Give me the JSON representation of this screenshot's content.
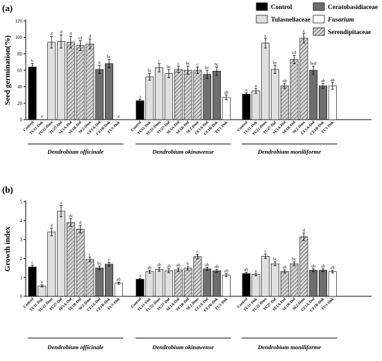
{
  "figure": {
    "legend": [
      {
        "label": "Control",
        "fill": "#000000",
        "hatch": false,
        "italic": false
      },
      {
        "label": "Tulasnellaceae",
        "fill": "#e0e0e0",
        "hatch": false,
        "italic": false
      },
      {
        "label": "Ceratobasidiaceae",
        "fill": "#6e6e6e",
        "hatch": false,
        "italic": false
      },
      {
        "label": "Fusarium",
        "fill": "#ffffff",
        "hatch": false,
        "italic": true
      },
      {
        "label": "Serendipitaceae",
        "fill": "#ffffff",
        "hatch": true,
        "italic": false
      }
    ],
    "colors": {
      "control": "#000000",
      "tulasnellaceae": "#e0e0e0",
      "ceratobasidiaceae": "#6e6e6e",
      "fusarium": "#ffffff",
      "serendipitaceae_hatch": "#5a5a5a",
      "axis": "#000000"
    }
  },
  "chart_data": [
    {
      "type": "bar",
      "panel_label": "(a)",
      "ylabel": "Seed  germination(%)",
      "ylim": [
        0,
        120
      ],
      "yticks": [
        0,
        20,
        40,
        60,
        80,
        100,
        120
      ],
      "groups": [
        {
          "name": "Dendrobium officinale",
          "bars": [
            {
              "label": "Control",
              "family": "control",
              "value": 64,
              "err": 4,
              "letter": "b"
            },
            {
              "label": "TU11-Dok",
              "family": "tulasnellaceae",
              "value": 0,
              "err": 0,
              "letter": "a"
            },
            {
              "label": "TU22-Dmo",
              "family": "tulasnellaceae",
              "value": 94,
              "err": 7,
              "letter": "d"
            },
            {
              "label": "TU27-Dof",
              "family": "tulasnellaceae",
              "value": 95,
              "err": 8,
              "letter": "d"
            },
            {
              "label": "SE1A-Dof",
              "family": "serendipitaceae",
              "value": 94,
              "err": 7,
              "letter": "d"
            },
            {
              "label": "SE1B-Dof",
              "family": "serendipitaceae",
              "value": 90,
              "err": 6,
              "letter": "cd"
            },
            {
              "label": "SE2-Dmo",
              "family": "serendipitaceae",
              "value": 92,
              "err": 6,
              "letter": "d"
            },
            {
              "label": "CE1A-Dof",
              "family": "ceratobasidiaceae",
              "value": 61,
              "err": 5,
              "letter": "b"
            },
            {
              "label": "CE1B-Dok",
              "family": "ceratobasidiaceae",
              "value": 68,
              "err": 5,
              "letter": "bc"
            },
            {
              "label": "FU1-Dok",
              "family": "fusarium",
              "value": 0,
              "err": 0,
              "letter": "a"
            }
          ]
        },
        {
          "name": "Dendrobium okinawense",
          "bars": [
            {
              "label": "Control",
              "family": "control",
              "value": 23,
              "err": 2,
              "letter": "a"
            },
            {
              "label": "TU11-Dok",
              "family": "tulasnellaceae",
              "value": 52,
              "err": 4,
              "letter": "bc"
            },
            {
              "label": "TU22-Dmo",
              "family": "tulasnellaceae",
              "value": 63,
              "err": 5,
              "letter": "c"
            },
            {
              "label": "TU27-Dof",
              "family": "tulasnellaceae",
              "value": 56,
              "err": 5,
              "letter": "bc"
            },
            {
              "label": "SE1A-Dof",
              "family": "serendipitaceae",
              "value": 61,
              "err": 4,
              "letter": "c"
            },
            {
              "label": "SE1B-Dof",
              "family": "serendipitaceae",
              "value": 60,
              "err": 5,
              "letter": "bc"
            },
            {
              "label": "SE2-Dmo",
              "family": "serendipitaceae",
              "value": 60,
              "err": 4,
              "letter": "c"
            },
            {
              "label": "CE1A-Dof",
              "family": "ceratobasidiaceae",
              "value": 55,
              "err": 5,
              "letter": "bc"
            },
            {
              "label": "CE1B-Dok",
              "family": "ceratobasidiaceae",
              "value": 59,
              "err": 5,
              "letter": "bc"
            },
            {
              "label": "FU1-Dok",
              "family": "fusarium",
              "value": 27,
              "err": 3,
              "letter": "ab"
            }
          ]
        },
        {
          "name": "Dendrobium moniliforme",
          "bars": [
            {
              "label": "Control",
              "family": "control",
              "value": 31,
              "err": 2,
              "letter": "a"
            },
            {
              "label": "TU11-Dok",
              "family": "tulasnellaceae",
              "value": 35,
              "err": 3,
              "letter": "a"
            },
            {
              "label": "TU22-Dmo",
              "family": "tulasnellaceae",
              "value": 93,
              "err": 6,
              "letter": "e"
            },
            {
              "label": "TU27-Dof",
              "family": "tulasnellaceae",
              "value": 61,
              "err": 5,
              "letter": "bc"
            },
            {
              "label": "SE1A-Dof",
              "family": "serendipitaceae",
              "value": 41,
              "err": 3,
              "letter": "ab"
            },
            {
              "label": "SE1B-Dof",
              "family": "serendipitaceae",
              "value": 73,
              "err": 5,
              "letter": "cd"
            },
            {
              "label": "SE2-Dmo",
              "family": "serendipitaceae",
              "value": 99,
              "err": 6,
              "letter": "e"
            },
            {
              "label": "CE1A-Dof",
              "family": "ceratobasidiaceae",
              "value": 60,
              "err": 5,
              "letter": "bcd"
            },
            {
              "label": "CE1B-Dok",
              "family": "ceratobasidiaceae",
              "value": 41,
              "err": 3,
              "letter": "ab"
            },
            {
              "label": "FU1-Dok",
              "family": "fusarium",
              "value": 41,
              "err": 4,
              "letter": "ab"
            }
          ]
        }
      ]
    },
    {
      "type": "bar",
      "panel_label": "(b)",
      "ylabel": "Growth index",
      "ylim": [
        0,
        5
      ],
      "yticks": [
        0,
        1,
        2,
        3,
        4,
        5
      ],
      "groups": [
        {
          "name": "Dendrobium officinale",
          "bars": [
            {
              "label": "Control",
              "family": "control",
              "value": 1.55,
              "err": 0.1,
              "letter": "c"
            },
            {
              "label": "TU11-Dok",
              "family": "tulasnellaceae",
              "value": 0.55,
              "err": 0.05,
              "letter": "a"
            },
            {
              "label": "TU22-Dmo",
              "family": "tulasnellaceae",
              "value": 3.4,
              "err": 0.2,
              "letter": "d"
            },
            {
              "label": "TU27-Dof",
              "family": "tulasnellaceae",
              "value": 4.5,
              "err": 0.3,
              "letter": "e"
            },
            {
              "label": "SE1A-Dof",
              "family": "serendipitaceae",
              "value": 3.9,
              "err": 0.2,
              "letter": "de"
            },
            {
              "label": "SE1B-Dof",
              "family": "serendipitaceae",
              "value": 3.55,
              "err": 0.2,
              "letter": "d"
            },
            {
              "label": "SE2-Dmo",
              "family": "serendipitaceae",
              "value": 1.95,
              "err": 0.12,
              "letter": "c"
            },
            {
              "label": "CE1A-Dof",
              "family": "ceratobasidiaceae",
              "value": 1.5,
              "err": 0.1,
              "letter": "bc"
            },
            {
              "label": "CE1B-Dok",
              "family": "ceratobasidiaceae",
              "value": 1.7,
              "err": 0.1,
              "letter": "c"
            },
            {
              "label": "FU1-Dok",
              "family": "fusarium",
              "value": 0.7,
              "err": 0.05,
              "letter": "ab"
            }
          ]
        },
        {
          "name": "Dendrobium okinawense",
          "bars": [
            {
              "label": "Control",
              "family": "control",
              "value": 0.9,
              "err": 0.05,
              "letter": "a"
            },
            {
              "label": "TU11-Dok",
              "family": "tulasnellaceae",
              "value": 1.3,
              "err": 0.08,
              "letter": "ab"
            },
            {
              "label": "TU22-Dmo",
              "family": "tulasnellaceae",
              "value": 1.42,
              "err": 0.1,
              "letter": "ab"
            },
            {
              "label": "TU27-Dof",
              "family": "tulasnellaceae",
              "value": 1.35,
              "err": 0.1,
              "letter": "ab"
            },
            {
              "label": "SE1A-Dof",
              "family": "serendipitaceae",
              "value": 1.4,
              "err": 0.1,
              "letter": "ab"
            },
            {
              "label": "SE1B-Dof",
              "family": "serendipitaceae",
              "value": 1.48,
              "err": 0.1,
              "letter": "b"
            },
            {
              "label": "SE2-Dmo",
              "family": "serendipitaceae",
              "value": 2.1,
              "err": 0.12,
              "letter": "c"
            },
            {
              "label": "CE1A-Dof",
              "family": "ceratobasidiaceae",
              "value": 1.45,
              "err": 0.08,
              "letter": "ab"
            },
            {
              "label": "CE1B-Dok",
              "family": "ceratobasidiaceae",
              "value": 1.35,
              "err": 0.08,
              "letter": "ab"
            },
            {
              "label": "FU1-Dok",
              "family": "fusarium",
              "value": 1.12,
              "err": 0.07,
              "letter": "ab"
            }
          ]
        },
        {
          "name": "Dendrobium moniliforme",
          "bars": [
            {
              "label": "Control",
              "family": "control",
              "value": 1.2,
              "err": 0.07,
              "letter": "ab"
            },
            {
              "label": "TU11-Dok",
              "family": "tulasnellaceae",
              "value": 1.15,
              "err": 0.07,
              "letter": "a"
            },
            {
              "label": "TU22-Dmo",
              "family": "tulasnellaceae",
              "value": 2.12,
              "err": 0.12,
              "letter": "c"
            },
            {
              "label": "TU27-Dof",
              "family": "tulasnellaceae",
              "value": 1.72,
              "err": 0.1,
              "letter": "bc"
            },
            {
              "label": "SE1A-Dof",
              "family": "serendipitaceae",
              "value": 1.32,
              "err": 0.08,
              "letter": "ab"
            },
            {
              "label": "SE1B-Dof",
              "family": "serendipitaceae",
              "value": 1.72,
              "err": 0.1,
              "letter": "bc"
            },
            {
              "label": "SE2-Dmo",
              "family": "serendipitaceae",
              "value": 3.15,
              "err": 0.2,
              "letter": "d"
            },
            {
              "label": "CE1A-Dof",
              "family": "ceratobasidiaceae",
              "value": 1.38,
              "err": 0.08,
              "letter": "ab"
            },
            {
              "label": "CE1B-Dok",
              "family": "ceratobasidiaceae",
              "value": 1.38,
              "err": 0.08,
              "letter": "ab"
            },
            {
              "label": "FU1-Dok",
              "family": "fusarium",
              "value": 1.3,
              "err": 0.07,
              "letter": "ab"
            }
          ]
        }
      ]
    }
  ]
}
